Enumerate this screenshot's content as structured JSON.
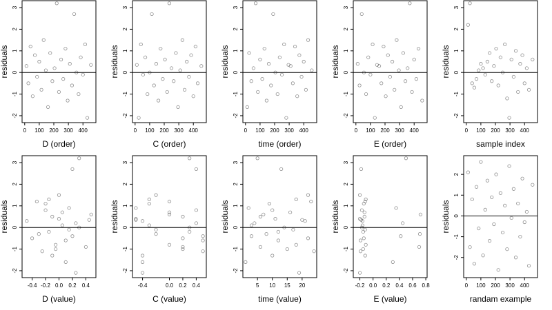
{
  "chart_data": [
    {
      "type": "scatter",
      "x_label": "D (order)",
      "y_label": "residuals",
      "xlim": [
        -18,
        489
      ],
      "ylim": [
        -2.32,
        3.32
      ],
      "xticks": [
        0,
        100,
        200,
        300,
        400
      ],
      "yticks": [
        -2,
        -1,
        0,
        1,
        2,
        3
      ],
      "hline": 0,
      "color": "#333333",
      "x": [
        12,
        25,
        40,
        55,
        70,
        85,
        100,
        115,
        130,
        145,
        160,
        175,
        190,
        205,
        220,
        235,
        250,
        265,
        280,
        295,
        310,
        325,
        340,
        355,
        370,
        385,
        400,
        415,
        430,
        455
      ],
      "y": [
        0.3,
        -0.5,
        1.2,
        -1.1,
        0.8,
        -0.2,
        0.5,
        -0.8,
        1.5,
        0.1,
        -1.6,
        0.9,
        -0.4,
        0.2,
        3.2,
        -0.9,
        0.6,
        -0.3,
        1.1,
        -1.3,
        0.4,
        -0.6,
        2.7,
        0.0,
        -1.0,
        0.7,
        -0.1,
        1.3,
        -2.1,
        0.35
      ]
    },
    {
      "type": "scatter",
      "x_label": "C (order)",
      "y_label": "residuals",
      "xlim": [
        -18,
        489
      ],
      "ylim": [
        -2.32,
        3.32
      ],
      "xticks": [
        0,
        100,
        200,
        300,
        400
      ],
      "yticks": [
        -2,
        -1,
        0,
        1,
        2,
        3
      ],
      "hline": 0,
      "color": "#333333",
      "x": [
        12,
        25,
        40,
        55,
        70,
        85,
        100,
        115,
        130,
        145,
        160,
        175,
        190,
        205,
        220,
        235,
        250,
        265,
        280,
        295,
        310,
        325,
        340,
        355,
        370,
        385,
        400,
        415,
        430,
        455
      ],
      "y": [
        0.35,
        -2.1,
        1.3,
        -0.1,
        0.7,
        -1.0,
        0.0,
        2.7,
        -0.6,
        0.4,
        -1.3,
        1.1,
        -0.3,
        0.6,
        -0.9,
        3.2,
        0.2,
        -0.4,
        0.9,
        -1.6,
        0.1,
        1.5,
        -0.8,
        0.5,
        -0.2,
        0.8,
        -1.1,
        1.2,
        -0.5,
        0.3
      ]
    },
    {
      "type": "scatter",
      "x_label": "time (order)",
      "y_label": "residuals",
      "xlim": [
        -18,
        489
      ],
      "ylim": [
        -2.32,
        3.32
      ],
      "xticks": [
        0,
        100,
        200,
        300,
        400
      ],
      "yticks": [
        -2,
        -1,
        0,
        1,
        2,
        3
      ],
      "hline": 0,
      "color": "#333333",
      "x": [
        12,
        25,
        40,
        55,
        70,
        85,
        100,
        115,
        130,
        145,
        160,
        175,
        190,
        205,
        220,
        235,
        250,
        265,
        280,
        295,
        310,
        325,
        340,
        355,
        370,
        385,
        400,
        415,
        430,
        455
      ],
      "y": [
        -1.6,
        0.9,
        -0.4,
        0.2,
        3.2,
        -0.9,
        0.6,
        -0.3,
        1.1,
        -1.3,
        0.4,
        -0.6,
        2.7,
        0.0,
        -1.0,
        0.7,
        -0.1,
        1.3,
        -2.1,
        0.35,
        0.3,
        -0.5,
        1.2,
        -1.1,
        0.8,
        -0.2,
        0.5,
        -0.8,
        1.5,
        0.1
      ]
    },
    {
      "type": "scatter",
      "x_label": "E (order)",
      "y_label": "residuals",
      "xlim": [
        -18,
        489
      ],
      "ylim": [
        -2.32,
        3.32
      ],
      "xticks": [
        0,
        100,
        200,
        300,
        400
      ],
      "yticks": [
        -2,
        -1,
        0,
        1,
        2,
        3
      ],
      "hline": 0,
      "color": "#333333",
      "x": [
        12,
        25,
        40,
        55,
        70,
        85,
        100,
        115,
        130,
        145,
        160,
        175,
        190,
        205,
        220,
        235,
        250,
        265,
        280,
        295,
        310,
        325,
        340,
        355,
        370,
        385,
        400,
        415,
        430,
        455
      ],
      "y": [
        0.4,
        -0.6,
        2.7,
        0.0,
        -1.0,
        0.7,
        -0.1,
        1.3,
        -2.1,
        0.35,
        0.3,
        -0.5,
        1.2,
        -1.1,
        0.8,
        -0.2,
        0.5,
        -0.8,
        1.5,
        0.1,
        -1.6,
        0.9,
        -0.4,
        0.2,
        3.2,
        -0.9,
        0.6,
        -0.3,
        1.1,
        -1.3
      ]
    },
    {
      "type": "scatter",
      "x_label": "sample index",
      "y_label": "residuals",
      "xlim": [
        -18,
        489
      ],
      "ylim": [
        -2.32,
        3.32
      ],
      "xticks": [
        0,
        100,
        200,
        300,
        400
      ],
      "yticks": [
        -2,
        -1,
        0,
        1,
        2,
        3
      ],
      "hline": 0,
      "color": "#333333",
      "x": [
        12,
        25,
        40,
        55,
        70,
        85,
        100,
        115,
        130,
        145,
        160,
        175,
        190,
        205,
        220,
        235,
        250,
        265,
        280,
        295,
        310,
        325,
        340,
        355,
        370,
        385,
        400,
        415,
        430,
        455
      ],
      "y": [
        2.2,
        3.2,
        -0.5,
        -0.7,
        -0.3,
        0.1,
        0.4,
        0.2,
        -0.1,
        0.5,
        0.9,
        -0.4,
        0.3,
        1.1,
        -0.6,
        0.7,
        0.0,
        1.3,
        -1.2,
        -2.1,
        0.6,
        -0.2,
        1.0,
        -0.9,
        0.4,
        0.8,
        -0.5,
        0.2,
        -0.8,
        0.6
      ]
    },
    {
      "type": "scatter",
      "x_label": "D (value)",
      "y_label": "residuals",
      "xlim": [
        -0.55,
        0.55
      ],
      "ylim": [
        -2.32,
        3.32
      ],
      "xticks": [
        -0.4,
        -0.2,
        {
          "value": 0,
          "label": "0.0"
        },
        0.2,
        0.4
      ],
      "yticks": [
        -2,
        -1,
        0,
        1,
        2,
        3
      ],
      "hline": 0,
      "color": "#333333",
      "x": [
        -0.48,
        -0.4,
        -0.33,
        -0.25,
        -0.2,
        -0.15,
        -0.1,
        -0.05,
        0,
        0.05,
        0.1,
        0.15,
        0.2,
        0.25,
        0.3,
        0.4,
        0.48,
        -0.3,
        -0.2,
        -0.1,
        0,
        0.1,
        0.2,
        0.3,
        -0.05,
        0.05,
        0.15,
        -0.15,
        0.25,
        0.45
      ],
      "y": [
        0.3,
        -0.5,
        1.2,
        -1.1,
        0.8,
        -0.2,
        0.5,
        -0.8,
        1.5,
        0.1,
        -1.6,
        0.9,
        -0.4,
        0.2,
        3.2,
        -0.9,
        0.6,
        -0.3,
        1.1,
        -1.3,
        0.4,
        -0.6,
        2.7,
        0.0,
        -1.0,
        0.7,
        -0.1,
        1.3,
        -2.1,
        0.35
      ]
    },
    {
      "type": "scatter",
      "x_label": "C (value)",
      "y_label": "residuals",
      "xlim": [
        -0.55,
        0.55
      ],
      "ylim": [
        -2.32,
        3.32
      ],
      "xticks": [
        -0.4,
        {
          "value": 0,
          "label": "0.0"
        },
        0.2,
        0.4
      ],
      "yticks": [
        -2,
        -1,
        0,
        1,
        2,
        3
      ],
      "hline": 0,
      "color": "#333333",
      "x": [
        -0.5,
        -0.4,
        -0.3,
        -0.2,
        0,
        0.2,
        0.3,
        0.4,
        0.5,
        -0.5,
        -0.4,
        -0.3,
        -0.2,
        0,
        0.2,
        0.3,
        0.4,
        0.5,
        -0.5,
        -0.4,
        -0.3,
        -0.2,
        0,
        0.2,
        0.3,
        0.4,
        0.5,
        0,
        0.2,
        -0.4
      ],
      "y": [
        0.35,
        -2.1,
        1.3,
        -0.1,
        0.7,
        -1.0,
        0.0,
        2.7,
        -0.6,
        0.4,
        -1.3,
        1.1,
        -0.3,
        0.6,
        -0.9,
        3.2,
        0.2,
        -0.4,
        0.9,
        -1.6,
        0.1,
        1.5,
        -0.8,
        0.5,
        -0.2,
        0.8,
        -1.1,
        1.2,
        -0.5,
        0.3
      ]
    },
    {
      "type": "scatter",
      "x_label": "time (value)",
      "y_label": "residuals",
      "xlim": [
        0.1,
        24.9
      ],
      "ylim": [
        -2.32,
        3.32
      ],
      "xticks": [
        5,
        10,
        15,
        20
      ],
      "yticks": [
        -2,
        -1,
        0,
        1,
        2,
        3
      ],
      "hline": 0,
      "color": "#333333",
      "x": [
        1,
        2,
        3,
        4,
        5,
        6,
        7,
        8,
        9,
        10,
        11,
        12,
        13,
        14,
        15,
        16,
        17,
        18,
        19,
        20,
        21,
        22,
        23,
        24,
        10,
        12,
        6,
        18,
        22,
        3
      ],
      "y": [
        -1.6,
        0.9,
        -0.4,
        0.2,
        3.2,
        -0.9,
        0.6,
        -0.3,
        1.1,
        -1.3,
        0.4,
        -0.6,
        2.7,
        0.0,
        -1.0,
        0.7,
        -0.1,
        1.3,
        -2.1,
        0.35,
        0.3,
        -0.5,
        1.2,
        -1.1,
        0.8,
        -0.2,
        0.5,
        -0.8,
        1.5,
        0.1
      ]
    },
    {
      "type": "scatter",
      "x_label": "E (value)",
      "y_label": "residuals",
      "xlim": [
        -0.3,
        0.82
      ],
      "ylim": [
        -2.32,
        3.32
      ],
      "xticks": [
        -0.2,
        {
          "value": 0,
          "label": "0.0"
        },
        0.2,
        0.4,
        0.6,
        0.8
      ],
      "yticks": [
        -2,
        -1,
        0,
        1,
        2,
        3
      ],
      "hline": 0,
      "color": "#333333",
      "x": [
        -0.2,
        -0.19,
        -0.18,
        -0.17,
        -0.15,
        -0.13,
        -0.12,
        -0.11,
        -0.2,
        -0.18,
        -0.16,
        -0.14,
        -0.12,
        -0.19,
        -0.17,
        -0.15,
        -0.13,
        -0.11,
        -0.2,
        -0.16,
        0.3,
        0.35,
        0.42,
        0.45,
        0.5,
        0.7,
        0.72,
        0.71,
        -0.14,
        -0.12
      ],
      "y": [
        0.4,
        -0.6,
        2.7,
        0.0,
        -1.0,
        0.7,
        -0.1,
        1.3,
        -2.1,
        0.35,
        0.3,
        -0.5,
        1.2,
        -1.1,
        0.8,
        -0.2,
        0.5,
        -0.8,
        1.5,
        0.1,
        -1.6,
        0.9,
        -0.4,
        0.2,
        3.2,
        -0.9,
        0.6,
        -0.3,
        1.1,
        -1.3
      ]
    },
    {
      "type": "scatter",
      "x_label": "randam example",
      "y_label": "residuals",
      "xlim": [
        -18,
        489
      ],
      "ylim": [
        -2.97,
        2.9
      ],
      "xticks": [
        0,
        100,
        200,
        300,
        400
      ],
      "yticks": [
        -2,
        -1,
        0,
        1,
        2
      ],
      "hline": 0,
      "color": "#333333",
      "x": [
        12,
        25,
        40,
        55,
        70,
        85,
        100,
        115,
        130,
        145,
        160,
        175,
        190,
        205,
        220,
        235,
        250,
        265,
        280,
        295,
        310,
        325,
        340,
        355,
        370,
        385,
        400,
        415,
        430,
        455
      ],
      "y": [
        2.1,
        -1.5,
        0.8,
        -2.3,
        1.4,
        -0.6,
        2.6,
        -1.9,
        0.3,
        1.7,
        -1.2,
        0.9,
        -0.4,
        2.0,
        -2.6,
        1.1,
        -0.8,
        0.5,
        -1.6,
        2.4,
        -0.1,
        1.3,
        -2.0,
        0.6,
        -1.0,
        1.8,
        -0.3,
        0.2,
        -2.4,
        1.5
      ]
    }
  ]
}
